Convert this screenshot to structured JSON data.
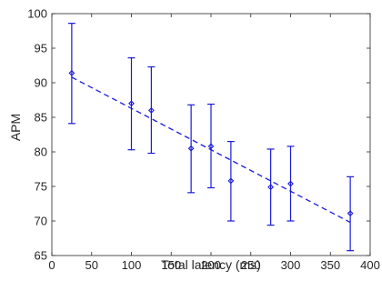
{
  "chart_data": {
    "type": "scatter",
    "title": "",
    "xlabel": "Total latency (ms)",
    "ylabel": "APM",
    "xlim": [
      0,
      400
    ],
    "ylim": [
      65,
      100
    ],
    "xticks": [
      0,
      50,
      100,
      150,
      200,
      250,
      300,
      350,
      400
    ],
    "yticks": [
      65,
      70,
      75,
      80,
      85,
      90,
      95,
      100
    ],
    "grid": false,
    "legend": "none",
    "series": [
      {
        "x": [
          25,
          100,
          125,
          175,
          200,
          225,
          275,
          300,
          375
        ],
        "y": [
          91.4,
          87.0,
          86.0,
          80.5,
          80.8,
          75.8,
          74.9,
          75.4,
          71.1
        ],
        "y_lower": [
          84.1,
          80.3,
          79.8,
          74.1,
          74.8,
          70.0,
          69.4,
          70.0,
          65.7
        ],
        "y_upper": [
          98.6,
          93.6,
          92.3,
          86.8,
          86.9,
          81.5,
          80.4,
          80.8,
          76.4
        ],
        "error_bars": true,
        "marker": "diamond",
        "color": "#1a1adb"
      }
    ],
    "trend_line": {
      "x": [
        25,
        375
      ],
      "y": [
        90.8,
        69.8
      ],
      "style": "dashed",
      "color": "#1a1adb"
    }
  }
}
